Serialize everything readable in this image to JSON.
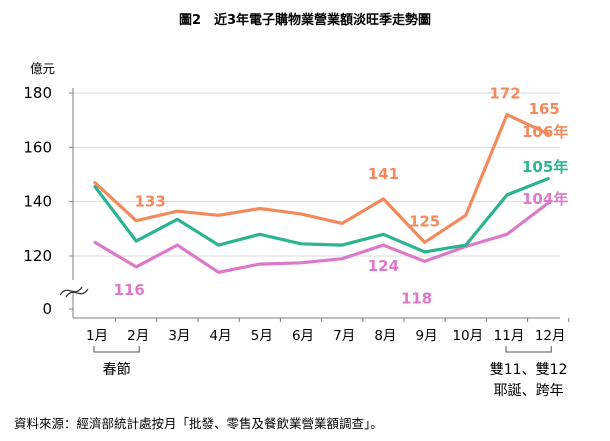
{
  "title": "圖2　近3年電子購物業營業額淡旺季走勢圖",
  "source": "資料來源：經濟部統計處按月「批發、零售及餐飲業營業額調查」。",
  "chart_data": {
    "type": "line",
    "ylabel": "億元",
    "ylim": [
      110,
      180
    ],
    "y_axis_break": true,
    "yticks": [
      "180",
      "160",
      "140",
      "120",
      "0"
    ],
    "categories": [
      "1月",
      "2月",
      "3月",
      "4月",
      "5月",
      "6月",
      "7月",
      "8月",
      "9月",
      "10月",
      "11月",
      "12月"
    ],
    "series": [
      {
        "name": "106年",
        "color": "#f28a5c",
        "values": [
          147,
          133,
          136.5,
          135,
          137.5,
          135.5,
          132,
          141,
          125,
          135,
          172,
          165
        ],
        "labels": [
          {
            "index": 1,
            "text": "133"
          },
          {
            "index": 7,
            "text": "141"
          },
          {
            "index": 8,
            "text": "125"
          },
          {
            "index": 10,
            "text": "172"
          },
          {
            "index": 11,
            "text": "165"
          }
        ]
      },
      {
        "name": "105年",
        "color": "#2bb48f",
        "values": [
          145.5,
          125.5,
          133.5,
          124,
          128,
          124.5,
          124,
          128,
          121.5,
          124,
          142.5,
          148.5
        ],
        "labels": []
      },
      {
        "name": "104年",
        "color": "#dc79c8",
        "values": [
          125,
          116,
          124,
          114,
          117,
          117.5,
          119,
          124,
          118,
          123.5,
          128,
          139.5
        ],
        "labels": [
          {
            "index": 1,
            "text": "116"
          },
          {
            "index": 7,
            "text": "124"
          },
          {
            "index": 8,
            "text": "118"
          }
        ]
      }
    ],
    "annotations": [
      {
        "from": 0,
        "to": 1,
        "text": [
          "春節"
        ]
      },
      {
        "from": 10,
        "to": 11,
        "text": [
          "雙11、雙12",
          "耶誕、跨年"
        ]
      }
    ]
  }
}
